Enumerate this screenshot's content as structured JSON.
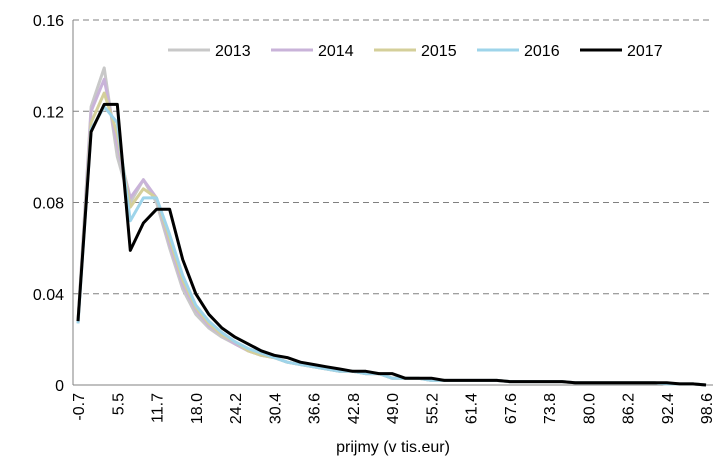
{
  "chart_data": {
    "type": "line",
    "x_label": "prijmy (v tis.eur)",
    "categories": [
      "-0.7",
      null,
      null,
      "5.5",
      null,
      null,
      "11.7",
      null,
      null,
      "18.0",
      null,
      null,
      "24.2",
      null,
      null,
      "30.4",
      null,
      null,
      "36.6",
      null,
      null,
      "42.8",
      null,
      null,
      "49.0",
      null,
      null,
      "55.2",
      null,
      null,
      "61.4",
      null,
      null,
      "67.6",
      null,
      null,
      "73.8",
      null,
      null,
      "80.0",
      null,
      null,
      "86.2",
      null,
      null,
      "92.4",
      null,
      null,
      "98.6"
    ],
    "ylim": [
      0,
      0.16
    ],
    "yticks": [
      0,
      0.04,
      0.08,
      0.12,
      0.16
    ],
    "grid": true,
    "legend": "top",
    "series": [
      {
        "name": "2013",
        "color": "#c8c8c8",
        "values": [
          0.027,
          0.122,
          0.139,
          0.1,
          0.08,
          0.09,
          0.08,
          0.06,
          0.042,
          0.031,
          0.025,
          0.021,
          0.018,
          0.015,
          0.013,
          0.012,
          0.01,
          0.009,
          0.008,
          0.007,
          0.006,
          0.006,
          0.005,
          0.005,
          0.003,
          0.003,
          0.003,
          0.002,
          0.002,
          0.002,
          0.002,
          0.002,
          0.002,
          0.0015,
          0.0015,
          0.0015,
          0.0015,
          0.0015,
          0.001,
          0.001,
          0.001,
          0.001,
          0.001,
          0.001,
          0.001,
          0.0005,
          0.0005,
          0.0005,
          0
        ]
      },
      {
        "name": "2014",
        "color": "#c9b3d9",
        "values": [
          0.028,
          0.12,
          0.134,
          0.105,
          0.082,
          0.09,
          0.082,
          0.062,
          0.044,
          0.033,
          0.026,
          0.022,
          0.018,
          0.015,
          0.013,
          0.012,
          0.01,
          0.009,
          0.008,
          0.007,
          0.006,
          0.006,
          0.005,
          0.005,
          0.003,
          0.003,
          0.003,
          0.002,
          0.002,
          0.002,
          0.002,
          0.002,
          0.002,
          0.0015,
          0.0015,
          0.0015,
          0.0015,
          0.0015,
          0.001,
          0.001,
          0.001,
          0.001,
          0.001,
          0.001,
          0.001,
          0.0005,
          0.0005,
          0.0005,
          0
        ]
      },
      {
        "name": "2015",
        "color": "#d4cf9a",
        "values": [
          0.028,
          0.115,
          0.128,
          0.11,
          0.078,
          0.086,
          0.082,
          0.064,
          0.046,
          0.034,
          0.027,
          0.022,
          0.019,
          0.015,
          0.013,
          0.012,
          0.01,
          0.009,
          0.008,
          0.007,
          0.006,
          0.006,
          0.005,
          0.005,
          0.003,
          0.003,
          0.003,
          0.002,
          0.002,
          0.002,
          0.002,
          0.002,
          0.002,
          0.0015,
          0.0015,
          0.0015,
          0.0015,
          0.0015,
          0.001,
          0.001,
          0.001,
          0.001,
          0.001,
          0.001,
          0.001,
          0.0005,
          0.0005,
          0.0005,
          0
        ]
      },
      {
        "name": "2016",
        "color": "#9ed4ea",
        "values": [
          0.027,
          0.112,
          0.122,
          0.115,
          0.072,
          0.082,
          0.082,
          0.066,
          0.048,
          0.035,
          0.028,
          0.023,
          0.019,
          0.016,
          0.014,
          0.012,
          0.01,
          0.009,
          0.008,
          0.007,
          0.006,
          0.006,
          0.005,
          0.005,
          0.003,
          0.003,
          0.003,
          0.002,
          0.002,
          0.002,
          0.002,
          0.002,
          0.002,
          0.0015,
          0.0015,
          0.0015,
          0.0015,
          0.0015,
          0.001,
          0.001,
          0.001,
          0.001,
          0.001,
          0.001,
          0.001,
          0.0005,
          0.0005,
          0.0005,
          0
        ]
      },
      {
        "name": "2017",
        "color": "#000000",
        "values": [
          0.028,
          0.111,
          0.123,
          0.123,
          0.059,
          0.071,
          0.077,
          0.077,
          0.055,
          0.04,
          0.031,
          0.025,
          0.021,
          0.018,
          0.015,
          0.013,
          0.012,
          0.01,
          0.009,
          0.008,
          0.007,
          0.006,
          0.006,
          0.005,
          0.005,
          0.003,
          0.003,
          0.003,
          0.002,
          0.002,
          0.002,
          0.002,
          0.002,
          0.0015,
          0.0015,
          0.0015,
          0.0015,
          0.0015,
          0.001,
          0.001,
          0.001,
          0.001,
          0.001,
          0.001,
          0.001,
          0.001,
          0.0005,
          0.0005,
          0
        ]
      }
    ]
  }
}
